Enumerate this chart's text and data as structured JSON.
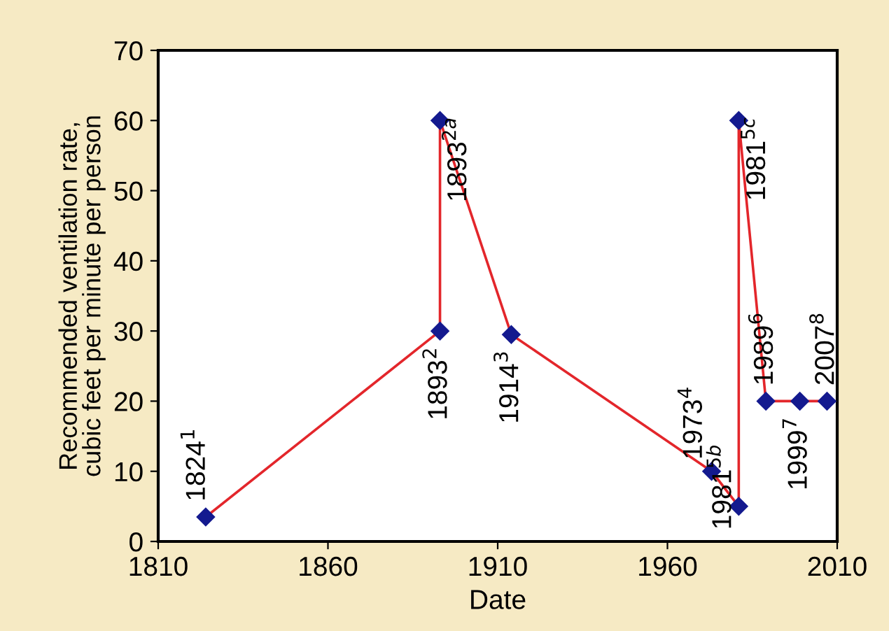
{
  "chart_data": {
    "type": "line",
    "xlabel": "Date",
    "ylabel": "Recommended ventilation rate,\ncubic feet per minute per person",
    "x": [
      1824,
      1893,
      1893,
      1914,
      1973,
      1981,
      1981,
      1989,
      1999,
      2007
    ],
    "series": [
      {
        "color": "#e3262b",
        "values": [
          3.5,
          30,
          60,
          29.5,
          10,
          5,
          60,
          20,
          20,
          20
        ]
      }
    ],
    "marker": "diamond",
    "line_style": "solid",
    "grid": false,
    "legend": false,
    "xlim": [
      1810,
      2010
    ],
    "xticks": [
      1810,
      1860,
      1910,
      1960,
      2010
    ],
    "ylim": [
      0,
      70
    ],
    "yticks": [
      0,
      10,
      20,
      30,
      40,
      50,
      60,
      70
    ],
    "annotations": [
      {
        "text": "1824$^{1}$",
        "x": 1824,
        "y": 3.5
      },
      {
        "text": "1893$^{2}$",
        "x": 1893,
        "y": 30
      },
      {
        "text": "1893$^{2a}$",
        "x": 1893,
        "y": 60
      },
      {
        "text": "1914$^{3}$",
        "x": 1914,
        "y": 29.5
      },
      {
        "text": "1973$^{4}$",
        "x": 1973,
        "y": 10
      },
      {
        "text": "1981$^{5b}$",
        "x": 1981,
        "y": 5
      },
      {
        "text": "1981$^{5c}$",
        "x": 1981,
        "y": 60
      },
      {
        "text": "1989$^{6}$",
        "x": 1989,
        "y": 20
      },
      {
        "text": "1999$^{7}$",
        "x": 1999,
        "y": 20
      },
      {
        "text": "2007$^{8}$",
        "x": 2007,
        "y": 20
      }
    ]
  }
}
